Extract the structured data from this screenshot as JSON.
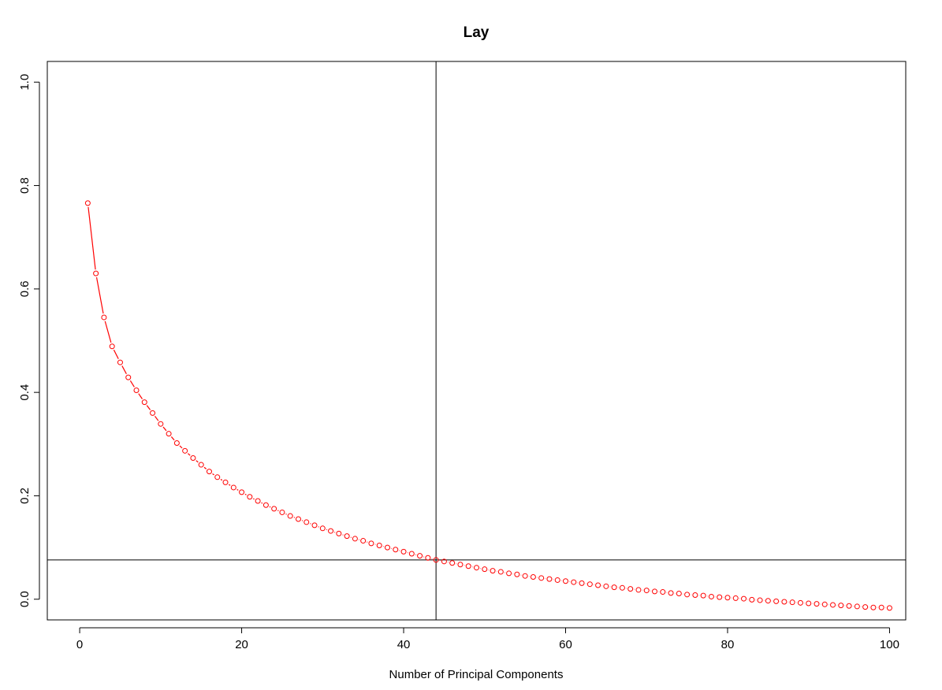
{
  "chart_data": {
    "type": "line",
    "title": "Lay",
    "xlabel": "Number of Principal Components",
    "ylabel": "",
    "xlim": [
      -4,
      102
    ],
    "ylim": [
      -0.04,
      1.04
    ],
    "x_ticks": [
      0,
      20,
      40,
      60,
      80,
      100
    ],
    "y_ticks": [
      0.0,
      0.2,
      0.4,
      0.6,
      0.8,
      1.0
    ],
    "x_tick_labels": [
      "0",
      "20",
      "40",
      "60",
      "80",
      "100"
    ],
    "y_tick_labels": [
      "0.0",
      "0.2",
      "0.4",
      "0.6",
      "0.8",
      "1.0"
    ],
    "grid": false,
    "reference_lines": {
      "vertical_x": 44,
      "horizontal_y": 0.076
    },
    "series": [
      {
        "color": "#ff0000",
        "marker": "open-circle",
        "x": [
          1,
          2,
          3,
          4,
          5,
          6,
          7,
          8,
          9,
          10,
          11,
          12,
          13,
          14,
          15,
          16,
          17,
          18,
          19,
          20,
          21,
          22,
          23,
          24,
          25,
          26,
          27,
          28,
          29,
          30,
          31,
          32,
          33,
          34,
          35,
          36,
          37,
          38,
          39,
          40,
          41,
          42,
          43,
          44,
          45,
          46,
          47,
          48,
          49,
          50,
          51,
          52,
          53,
          54,
          55,
          56,
          57,
          58,
          59,
          60,
          61,
          62,
          63,
          64,
          65,
          66,
          67,
          68,
          69,
          70,
          71,
          72,
          73,
          74,
          75,
          76,
          77,
          78,
          79,
          80,
          81,
          82,
          83,
          84,
          85,
          86,
          87,
          88,
          89,
          90,
          91,
          92,
          93,
          94,
          95,
          96,
          97,
          98,
          99,
          100
        ],
        "y": [
          0.766,
          0.63,
          0.545,
          0.489,
          0.458,
          0.429,
          0.404,
          0.381,
          0.36,
          0.339,
          0.32,
          0.302,
          0.287,
          0.273,
          0.26,
          0.247,
          0.236,
          0.226,
          0.216,
          0.207,
          0.198,
          0.19,
          0.182,
          0.175,
          0.168,
          0.161,
          0.155,
          0.149,
          0.143,
          0.137,
          0.132,
          0.127,
          0.122,
          0.117,
          0.113,
          0.108,
          0.104,
          0.1,
          0.096,
          0.092,
          0.088,
          0.084,
          0.08,
          0.076,
          0.073,
          0.07,
          0.067,
          0.064,
          0.061,
          0.058,
          0.055,
          0.053,
          0.05,
          0.048,
          0.045,
          0.043,
          0.041,
          0.039,
          0.037,
          0.035,
          0.033,
          0.031,
          0.029,
          0.027,
          0.025,
          0.023,
          0.022,
          0.02,
          0.018,
          0.017,
          0.015,
          0.014,
          0.012,
          0.011,
          0.009,
          0.008,
          0.007,
          0.005,
          0.004,
          0.003,
          0.002,
          0.001,
          -0.001,
          -0.002,
          -0.003,
          -0.004,
          -0.005,
          -0.006,
          -0.007,
          -0.008,
          -0.009,
          -0.01,
          -0.011,
          -0.012,
          -0.013,
          -0.014,
          -0.015,
          -0.016,
          -0.016,
          -0.017
        ]
      }
    ]
  }
}
